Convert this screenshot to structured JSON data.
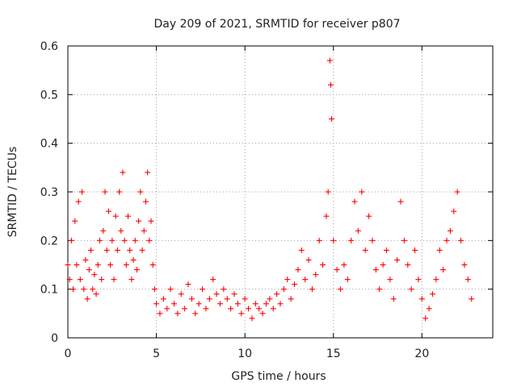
{
  "chart_data": {
    "type": "scatter",
    "title": "Day 209 of 2021, SRMTID for receiver p807",
    "xlabel": "GPS time / hours",
    "ylabel": "SRMTID / TECUs",
    "xlim": [
      0,
      24
    ],
    "ylim": [
      0,
      0.6
    ],
    "xticks": [
      0,
      5,
      10,
      15,
      20
    ],
    "yticks": [
      0,
      0.1,
      0.2,
      0.3,
      0.4,
      0.5,
      0.6
    ],
    "grid": true,
    "marker": "+",
    "color": "#ff0000",
    "series": [
      {
        "name": "SRMTID",
        "x": [
          0.0,
          0.1,
          0.2,
          0.3,
          0.4,
          0.5,
          0.6,
          0.7,
          0.8,
          0.9,
          1.0,
          1.1,
          1.2,
          1.3,
          1.4,
          1.5,
          1.6,
          1.7,
          1.8,
          1.9,
          2.0,
          2.1,
          2.2,
          2.3,
          2.4,
          2.5,
          2.6,
          2.7,
          2.8,
          2.9,
          3.0,
          3.1,
          3.2,
          3.3,
          3.4,
          3.5,
          3.6,
          3.7,
          3.8,
          3.9,
          4.0,
          4.1,
          4.2,
          4.3,
          4.4,
          4.5,
          4.6,
          4.7,
          4.8,
          4.9,
          5.0,
          5.2,
          5.4,
          5.6,
          5.8,
          6.0,
          6.2,
          6.4,
          6.6,
          6.8,
          7.0,
          7.2,
          7.4,
          7.6,
          7.8,
          8.0,
          8.2,
          8.4,
          8.6,
          8.8,
          9.0,
          9.2,
          9.4,
          9.6,
          9.8,
          10.0,
          10.2,
          10.4,
          10.6,
          10.8,
          11.0,
          11.2,
          11.4,
          11.6,
          11.8,
          12.0,
          12.2,
          12.4,
          12.6,
          12.8,
          13.0,
          13.2,
          13.4,
          13.6,
          13.8,
          14.0,
          14.2,
          14.4,
          14.6,
          14.7,
          14.8,
          14.85,
          14.9,
          15.0,
          15.2,
          15.4,
          15.6,
          15.8,
          16.0,
          16.2,
          16.4,
          16.6,
          16.8,
          17.0,
          17.2,
          17.4,
          17.6,
          17.8,
          18.0,
          18.2,
          18.4,
          18.6,
          18.8,
          19.0,
          19.2,
          19.4,
          19.6,
          19.8,
          20.0,
          20.2,
          20.4,
          20.6,
          20.8,
          21.0,
          21.2,
          21.4,
          21.6,
          21.8,
          22.0,
          22.2,
          22.4,
          22.6,
          22.8
        ],
        "y": [
          0.15,
          0.12,
          0.2,
          0.1,
          0.24,
          0.15,
          0.28,
          0.12,
          0.3,
          0.1,
          0.16,
          0.08,
          0.14,
          0.18,
          0.1,
          0.13,
          0.09,
          0.15,
          0.2,
          0.12,
          0.22,
          0.3,
          0.18,
          0.26,
          0.15,
          0.2,
          0.12,
          0.25,
          0.18,
          0.3,
          0.22,
          0.34,
          0.2,
          0.15,
          0.25,
          0.18,
          0.12,
          0.16,
          0.2,
          0.14,
          0.24,
          0.3,
          0.18,
          0.22,
          0.28,
          0.34,
          0.2,
          0.24,
          0.15,
          0.1,
          0.07,
          0.05,
          0.08,
          0.06,
          0.1,
          0.07,
          0.05,
          0.09,
          0.06,
          0.11,
          0.08,
          0.05,
          0.07,
          0.1,
          0.06,
          0.08,
          0.12,
          0.09,
          0.07,
          0.1,
          0.08,
          0.06,
          0.09,
          0.07,
          0.05,
          0.08,
          0.06,
          0.04,
          0.07,
          0.06,
          0.05,
          0.07,
          0.08,
          0.06,
          0.09,
          0.07,
          0.1,
          0.12,
          0.08,
          0.11,
          0.14,
          0.18,
          0.12,
          0.16,
          0.1,
          0.13,
          0.2,
          0.15,
          0.25,
          0.3,
          0.57,
          0.52,
          0.45,
          0.2,
          0.14,
          0.1,
          0.15,
          0.12,
          0.2,
          0.28,
          0.22,
          0.3,
          0.18,
          0.25,
          0.2,
          0.14,
          0.1,
          0.15,
          0.18,
          0.12,
          0.08,
          0.16,
          0.28,
          0.2,
          0.15,
          0.1,
          0.18,
          0.12,
          0.08,
          0.04,
          0.06,
          0.09,
          0.12,
          0.18,
          0.14,
          0.2,
          0.22,
          0.26,
          0.3,
          0.2,
          0.15,
          0.12,
          0.08
        ]
      }
    ]
  }
}
